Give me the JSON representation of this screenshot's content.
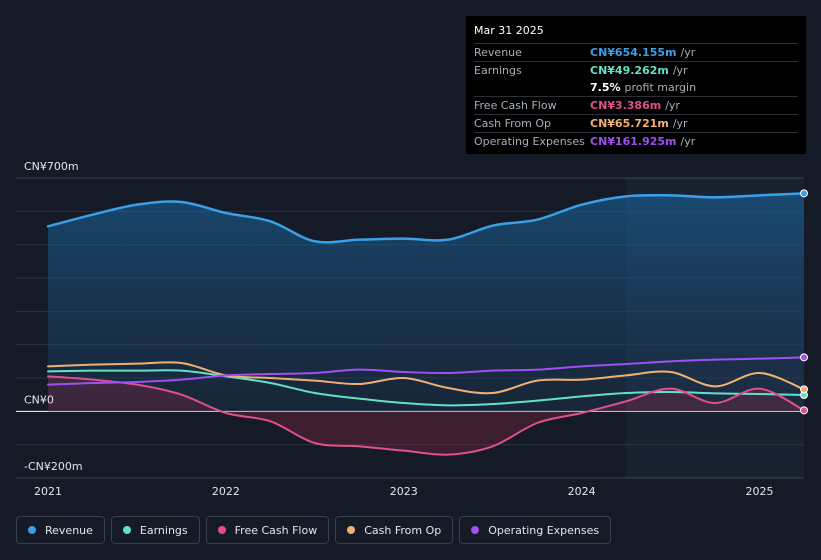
{
  "tooltip": {
    "date": "Mar 31 2025",
    "rows": [
      {
        "name": "Revenue",
        "value": "CN¥654.155m",
        "unit": "/yr",
        "color": "#3aa0ea"
      },
      {
        "name": "Earnings",
        "value": "CN¥49.262m",
        "unit": "/yr",
        "color": "#64e0c8"
      },
      {
        "name": "",
        "value": "7.5%",
        "unit": "profit margin",
        "color": "#ffffff"
      },
      {
        "name": "Free Cash Flow",
        "value": "CN¥3.386m",
        "unit": "/yr",
        "color": "#e0508c"
      },
      {
        "name": "Cash From Op",
        "value": "CN¥65.721m",
        "unit": "/yr",
        "color": "#f0b070"
      },
      {
        "name": "Operating Expenses",
        "value": "CN¥161.925m",
        "unit": "/yr",
        "color": "#a050f0"
      }
    ]
  },
  "legend": [
    {
      "label": "Revenue",
      "color": "#3aa0ea"
    },
    {
      "label": "Earnings",
      "color": "#64e0c8"
    },
    {
      "label": "Free Cash Flow",
      "color": "#e0508c"
    },
    {
      "label": "Cash From Op",
      "color": "#f0b070"
    },
    {
      "label": "Operating Expenses",
      "color": "#a050f0"
    }
  ],
  "chart_data": {
    "type": "line",
    "ylim": [
      -200,
      700
    ],
    "y_ticks": [
      {
        "value": 700,
        "label": "CN¥700m"
      },
      {
        "value": 0,
        "label": "CN¥0"
      },
      {
        "value": -200,
        "label": "-CN¥200m"
      }
    ],
    "x_range": [
      2021.0,
      2025.25
    ],
    "x_ticks": [
      {
        "value": 2021,
        "label": "2021"
      },
      {
        "value": 2022,
        "label": "2022"
      },
      {
        "value": 2023,
        "label": "2023"
      },
      {
        "value": 2024,
        "label": "2024"
      },
      {
        "value": 2025,
        "label": "2025"
      }
    ],
    "highlight_start": 2024.25,
    "series": [
      {
        "name": "Revenue",
        "color": "#3aa0ea",
        "fill": true,
        "points": [
          [
            2021.0,
            555
          ],
          [
            2021.25,
            590
          ],
          [
            2021.5,
            620
          ],
          [
            2021.75,
            628
          ],
          [
            2022.0,
            595
          ],
          [
            2022.25,
            570
          ],
          [
            2022.5,
            510
          ],
          [
            2022.75,
            515
          ],
          [
            2023.0,
            518
          ],
          [
            2023.25,
            515
          ],
          [
            2023.5,
            557
          ],
          [
            2023.75,
            575
          ],
          [
            2024.0,
            620
          ],
          [
            2024.25,
            645
          ],
          [
            2024.5,
            648
          ],
          [
            2024.75,
            642
          ],
          [
            2025.0,
            648
          ],
          [
            2025.25,
            654
          ]
        ]
      },
      {
        "name": "Earnings",
        "color": "#64e0c8",
        "fill": false,
        "points": [
          [
            2021.0,
            120
          ],
          [
            2021.25,
            122
          ],
          [
            2021.5,
            122
          ],
          [
            2021.75,
            122
          ],
          [
            2022.0,
            105
          ],
          [
            2022.25,
            85
          ],
          [
            2022.5,
            55
          ],
          [
            2022.75,
            38
          ],
          [
            2023.0,
            25
          ],
          [
            2023.25,
            18
          ],
          [
            2023.5,
            22
          ],
          [
            2023.75,
            32
          ],
          [
            2024.0,
            45
          ],
          [
            2024.25,
            55
          ],
          [
            2024.5,
            58
          ],
          [
            2024.75,
            54
          ],
          [
            2025.0,
            52
          ],
          [
            2025.25,
            49
          ]
        ]
      },
      {
        "name": "Free Cash Flow",
        "color": "#e0508c",
        "fill": true,
        "points": [
          [
            2021.0,
            105
          ],
          [
            2021.25,
            95
          ],
          [
            2021.5,
            80
          ],
          [
            2021.75,
            50
          ],
          [
            2022.0,
            -5
          ],
          [
            2022.25,
            -30
          ],
          [
            2022.5,
            -95
          ],
          [
            2022.75,
            -105
          ],
          [
            2023.0,
            -118
          ],
          [
            2023.25,
            -130
          ],
          [
            2023.5,
            -105
          ],
          [
            2023.75,
            -35
          ],
          [
            2024.0,
            -5
          ],
          [
            2024.25,
            30
          ],
          [
            2024.5,
            68
          ],
          [
            2024.75,
            25
          ],
          [
            2025.0,
            68
          ],
          [
            2025.25,
            3
          ]
        ]
      },
      {
        "name": "Cash From Op",
        "color": "#f0b070",
        "fill": false,
        "points": [
          [
            2021.0,
            135
          ],
          [
            2021.25,
            140
          ],
          [
            2021.5,
            143
          ],
          [
            2021.75,
            145
          ],
          [
            2022.0,
            108
          ],
          [
            2022.25,
            100
          ],
          [
            2022.5,
            92
          ],
          [
            2022.75,
            82
          ],
          [
            2023.0,
            100
          ],
          [
            2023.25,
            70
          ],
          [
            2023.5,
            55
          ],
          [
            2023.75,
            92
          ],
          [
            2024.0,
            95
          ],
          [
            2024.25,
            108
          ],
          [
            2024.5,
            118
          ],
          [
            2024.75,
            75
          ],
          [
            2025.0,
            115
          ],
          [
            2025.25,
            66
          ]
        ]
      },
      {
        "name": "Operating Expenses",
        "color": "#a050f0",
        "fill": false,
        "points": [
          [
            2021.0,
            80
          ],
          [
            2021.25,
            85
          ],
          [
            2021.5,
            88
          ],
          [
            2021.75,
            95
          ],
          [
            2022.0,
            108
          ],
          [
            2022.25,
            112
          ],
          [
            2022.5,
            115
          ],
          [
            2022.75,
            125
          ],
          [
            2023.0,
            118
          ],
          [
            2023.25,
            115
          ],
          [
            2023.5,
            122
          ],
          [
            2023.75,
            125
          ],
          [
            2024.0,
            135
          ],
          [
            2024.25,
            142
          ],
          [
            2024.5,
            150
          ],
          [
            2024.75,
            155
          ],
          [
            2025.0,
            158
          ],
          [
            2025.25,
            162
          ]
        ]
      }
    ]
  }
}
